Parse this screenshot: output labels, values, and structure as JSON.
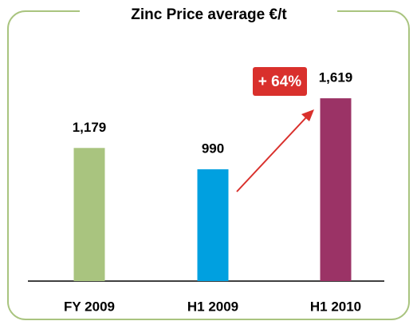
{
  "chart_data": {
    "type": "bar",
    "title": "Zinc Price average €/t",
    "categories": [
      "FY 2009",
      "H1 2009",
      "H1 2010"
    ],
    "values": [
      1179,
      990,
      1619
    ],
    "value_labels": [
      "1,179",
      "990",
      "1,619"
    ],
    "colors": [
      "#a9c47f",
      "#00a0e0",
      "#9b3366"
    ],
    "annotation": "+ 64%"
  }
}
